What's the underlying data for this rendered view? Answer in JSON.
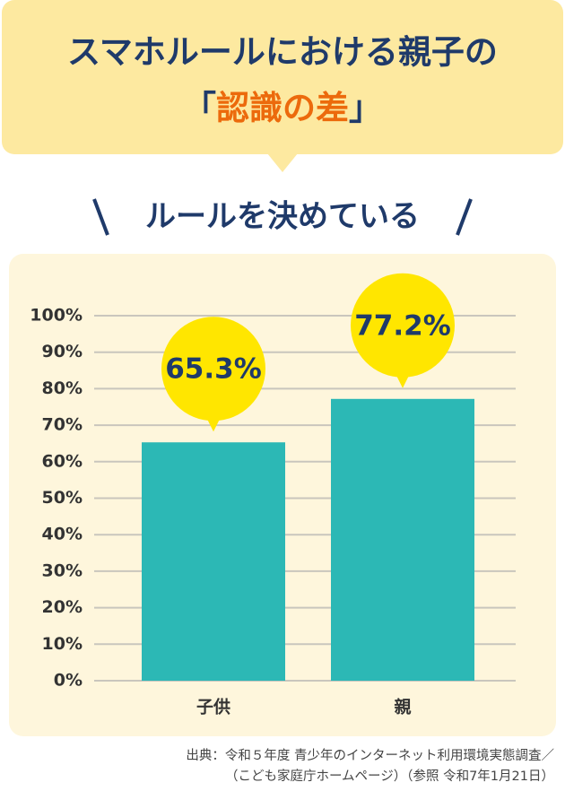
{
  "header": {
    "title_line1": "スマホルールにおける親子の",
    "title_open": "「",
    "title_highlight": "認識の差",
    "title_close": "」"
  },
  "chart_data": {
    "type": "bar",
    "title": "ルールを決めている",
    "categories": [
      "子供",
      "親"
    ],
    "values": [
      65.3,
      77.2
    ],
    "value_labels": [
      "65.3%",
      "77.2%"
    ],
    "color": "#2cb8b5",
    "bubble_color": "#ffe600",
    "ylim": [
      0,
      100
    ],
    "yticks": [
      {
        "value": 0,
        "label": "0%"
      },
      {
        "value": 10,
        "label": "10%"
      },
      {
        "value": 20,
        "label": "20%"
      },
      {
        "value": 30,
        "label": "30%"
      },
      {
        "value": 40,
        "label": "40%"
      },
      {
        "value": 50,
        "label": "50%"
      },
      {
        "value": 60,
        "label": "60%"
      },
      {
        "value": 70,
        "label": "70%"
      },
      {
        "value": 80,
        "label": "80%"
      },
      {
        "value": 90,
        "label": "90%"
      },
      {
        "value": 100,
        "label": "100%"
      }
    ],
    "grid": true
  },
  "footer": {
    "source_line1": "出典：令和５年度 青少年のインターネット利用環境実態調査／",
    "source_line2": "（こども家庭庁ホームページ）（参照 令和7年1月21日）"
  }
}
